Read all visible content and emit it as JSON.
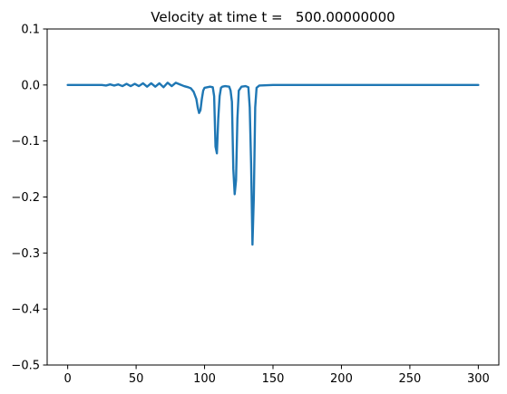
{
  "chart_data": {
    "type": "line",
    "title": "Velocity at time t =   500.00000000",
    "xlabel": "",
    "ylabel": "",
    "xlim": [
      -15,
      315
    ],
    "ylim": [
      -0.5,
      0.1
    ],
    "x_ticks": [
      0,
      50,
      100,
      150,
      200,
      250,
      300
    ],
    "x_tick_labels": [
      "0",
      "50",
      "100",
      "150",
      "200",
      "250",
      "300"
    ],
    "y_ticks": [
      0.1,
      0.0,
      -0.1,
      -0.2,
      -0.3,
      -0.4,
      -0.5
    ],
    "y_tick_labels": [
      "0.1",
      "0.0",
      "−0.1",
      "−0.2",
      "−0.3",
      "−0.4",
      "−0.5"
    ],
    "grid": false,
    "series": [
      {
        "color": "#1f77b4",
        "x": [
          0,
          10,
          20,
          25,
          28,
          31,
          34,
          37,
          40,
          43,
          46,
          49,
          52,
          55,
          58,
          61,
          64,
          67,
          70,
          73,
          76,
          79,
          82,
          85,
          88,
          90,
          92,
          94,
          95,
          96,
          97,
          98,
          99,
          100,
          102,
          104,
          106,
          107,
          108,
          109,
          110,
          111,
          112,
          113,
          115,
          118,
          119,
          120,
          121,
          122,
          123,
          124,
          125,
          127,
          130,
          132,
          133,
          134,
          135,
          136,
          137,
          138,
          140,
          150,
          200,
          250,
          300
        ],
        "y": [
          0,
          0,
          0,
          0,
          -0.001,
          0.001,
          -0.001,
          0.001,
          -0.002,
          0.002,
          -0.002,
          0.002,
          -0.002,
          0.003,
          -0.003,
          0.003,
          -0.003,
          0.003,
          -0.004,
          0.004,
          -0.002,
          0.004,
          0.001,
          -0.002,
          -0.004,
          -0.006,
          -0.012,
          -0.025,
          -0.04,
          -0.05,
          -0.045,
          -0.025,
          -0.01,
          -0.005,
          -0.004,
          -0.003,
          -0.004,
          -0.02,
          -0.11,
          -0.122,
          -0.06,
          -0.02,
          -0.005,
          -0.003,
          -0.002,
          -0.003,
          -0.01,
          -0.03,
          -0.15,
          -0.195,
          -0.17,
          -0.06,
          -0.01,
          -0.003,
          -0.002,
          -0.004,
          -0.04,
          -0.14,
          -0.285,
          -0.2,
          -0.04,
          -0.005,
          -0.001,
          0,
          0,
          0,
          0
        ]
      }
    ]
  }
}
